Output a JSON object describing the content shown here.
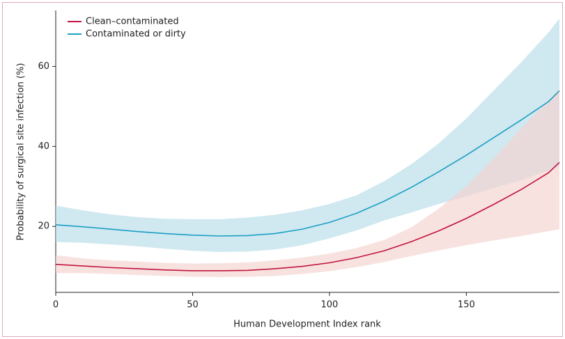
{
  "chart_data": {
    "type": "line",
    "xlabel": "Human Development Index rank",
    "ylabel": "Probability of surgical site infection (%)",
    "x": [
      0,
      10,
      20,
      30,
      40,
      50,
      60,
      70,
      80,
      90,
      100,
      110,
      120,
      130,
      140,
      150,
      160,
      170,
      180,
      184
    ],
    "xlim": [
      0,
      184
    ],
    "ylim": [
      3.5,
      74
    ],
    "xticks": [
      0,
      50,
      100,
      150
    ],
    "yticks": [
      20,
      40,
      60
    ],
    "legend": "upper left",
    "series": [
      {
        "name": "Clean–contaminated",
        "color": "#c0143c",
        "band_color": "#f5d3cf",
        "values": [
          10.5,
          10.1,
          9.7,
          9.4,
          9.1,
          8.9,
          8.9,
          9,
          9.4,
          10,
          10.9,
          12.2,
          13.9,
          16.2,
          18.9,
          22,
          25.5,
          29.2,
          33.4,
          36
        ],
        "upper": [
          12.8,
          12,
          11.5,
          11.2,
          10.9,
          10.7,
          10.8,
          11,
          11.5,
          12.2,
          13.2,
          14.6,
          16.6,
          19.8,
          24.5,
          30,
          37,
          44.5,
          51.5,
          54.5
        ],
        "lower": [
          8.3,
          8.3,
          8.1,
          7.8,
          7.6,
          7.4,
          7.3,
          7.4,
          7.6,
          8.1,
          8.8,
          9.8,
          11.1,
          12.6,
          14,
          15.3,
          16.5,
          17.6,
          18.8,
          19.3
        ]
      },
      {
        "name": "Contaminated or dirty",
        "color": "#1a9fc4",
        "band_color": "#b7dbe8",
        "values": [
          20.4,
          19.9,
          19.3,
          18.7,
          18.2,
          17.8,
          17.6,
          17.7,
          18.2,
          19.3,
          21,
          23.3,
          26.3,
          29.8,
          33.7,
          37.8,
          42.2,
          46.6,
          51.2,
          53.9
        ],
        "upper": [
          25.2,
          24,
          23,
          22.3,
          21.9,
          21.8,
          21.8,
          22.2,
          22.9,
          24,
          25.6,
          27.8,
          31.3,
          35.6,
          40.8,
          47,
          54,
          61,
          68.5,
          72
        ],
        "lower": [
          16.1,
          15.9,
          15.5,
          15,
          14.4,
          13.9,
          13.6,
          13.7,
          14.2,
          15.3,
          17,
          19,
          21.5,
          23.5,
          25.6,
          27.5,
          29.6,
          31.5,
          34,
          35
        ]
      }
    ]
  }
}
